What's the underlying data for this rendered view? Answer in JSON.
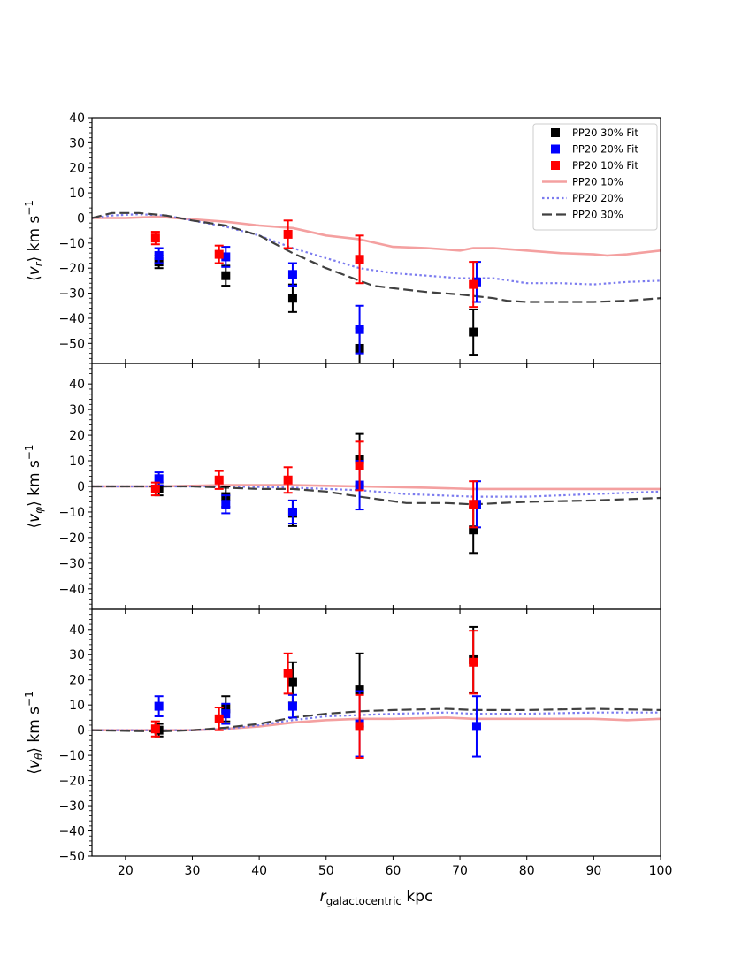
{
  "chart_data": {
    "type": "scatter",
    "xlabel_main": "r",
    "xlabel_sub": "galactocentric",
    "xlabel_unit": "kpc",
    "xlim": [
      15,
      100
    ],
    "xticks": [
      20,
      30,
      40,
      50,
      60,
      70,
      80,
      90,
      100
    ],
    "legend_position": "top-right",
    "legend": [
      {
        "label": "PP20 30% Fit",
        "kind": "marker",
        "color": "#000000"
      },
      {
        "label": "PP20 20% Fit",
        "kind": "marker",
        "color": "#0000ff"
      },
      {
        "label": "PP20 10% Fit",
        "kind": "marker",
        "color": "#ff0000"
      },
      {
        "label": "PP20 10%",
        "kind": "line",
        "color": "#f4a0a0",
        "style": "solid"
      },
      {
        "label": "PP20 20%",
        "kind": "line",
        "color": "#7b7bef",
        "style": "dotted"
      },
      {
        "label": "PP20 30%",
        "kind": "line",
        "color": "#404040",
        "style": "dashed"
      }
    ],
    "panels": [
      {
        "ylabel_sym": "v",
        "ylabel_sub": "r",
        "ylabel_unit": "km s",
        "ylabel_exp": "−1",
        "ylim": [
          -58,
          40
        ],
        "yticks": [
          -50,
          -40,
          -30,
          -20,
          -10,
          0,
          10,
          20,
          30,
          40
        ],
        "lines": [
          {
            "name": "PP20 10%",
            "x": [
              15,
              20,
              25,
              30,
              35,
              40,
              45,
              50,
              55,
              60,
              65,
              70,
              72,
              75,
              80,
              85,
              90,
              92,
              95,
              100
            ],
            "y": [
              0,
              0,
              0.5,
              -0.5,
              -1.5,
              -3,
              -4,
              -7,
              -8.5,
              -11.5,
              -12,
              -13,
              -12,
              -12,
              -13,
              -14,
              -14.5,
              -15,
              -14.5,
              -13
            ]
          },
          {
            "name": "PP20 20%",
            "x": [
              15,
              18,
              22,
              26,
              30,
              35,
              40,
              45,
              50,
              55,
              60,
              65,
              70,
              75,
              80,
              85,
              90,
              95,
              100
            ],
            "y": [
              0,
              1,
              1.5,
              1,
              -1,
              -3.5,
              -7,
              -12,
              -16,
              -20,
              -22,
              -23,
              -24,
              -24,
              -26,
              -26,
              -26.5,
              -25.5,
              -25
            ]
          },
          {
            "name": "PP20 30%",
            "x": [
              15,
              18,
              22,
              26,
              30,
              35,
              40,
              45,
              50,
              55,
              57,
              60,
              65,
              70,
              75,
              77,
              80,
              85,
              90,
              95,
              100
            ],
            "y": [
              0,
              2,
              2,
              1,
              -1,
              -3,
              -7,
              -14,
              -20,
              -25,
              -27,
              -28,
              -29.5,
              -30.5,
              -32,
              -33,
              -33.5,
              -33.5,
              -33.5,
              -33,
              -32
            ]
          }
        ],
        "points": [
          {
            "series": "PP20 30% Fit",
            "x": 25,
            "y": -17.5,
            "yerr": 2.5
          },
          {
            "series": "PP20 30% Fit",
            "x": 35,
            "y": -23,
            "yerr": 4
          },
          {
            "series": "PP20 30% Fit",
            "x": 45,
            "y": -32,
            "yerr": 5.5
          },
          {
            "series": "PP20 30% Fit",
            "x": 55,
            "y": -52,
            "yerr": 8
          },
          {
            "series": "PP20 30% Fit",
            "x": 72,
            "y": -45.5,
            "yerr": 9
          },
          {
            "series": "PP20 20% Fit",
            "x": 25,
            "y": -15,
            "yerr": 3
          },
          {
            "series": "PP20 20% Fit",
            "x": 35,
            "y": -15.5,
            "yerr": 4
          },
          {
            "series": "PP20 20% Fit",
            "x": 45,
            "y": -22.5,
            "yerr": 4.5
          },
          {
            "series": "PP20 20% Fit",
            "x": 55,
            "y": -44.5,
            "yerr": 9.5
          },
          {
            "series": "PP20 20% Fit",
            "x": 72.5,
            "y": -25.5,
            "yerr": 8
          },
          {
            "series": "PP20 10% Fit",
            "x": 24.5,
            "y": -8,
            "yerr": 2.5
          },
          {
            "series": "PP20 10% Fit",
            "x": 34,
            "y": -14.5,
            "yerr": 3.5
          },
          {
            "series": "PP20 10% Fit",
            "x": 44.3,
            "y": -6.5,
            "yerr": 5.5
          },
          {
            "series": "PP20 10% Fit",
            "x": 55,
            "y": -16.5,
            "yerr": 9.5
          },
          {
            "series": "PP20 10% Fit",
            "x": 72,
            "y": -26.5,
            "yerr": 9
          }
        ]
      },
      {
        "ylabel_sym": "v",
        "ylabel_sub": "φ",
        "ylabel_unit": "km s",
        "ylabel_exp": "−1",
        "ylim": [
          -48,
          48
        ],
        "yticks": [
          -40,
          -30,
          -20,
          -10,
          0,
          10,
          20,
          30,
          40
        ],
        "lines": [
          {
            "name": "PP20 10%",
            "x": [
              15,
              25,
              35,
              45,
              55,
              65,
              72,
              80,
              90,
              100
            ],
            "y": [
              0,
              0,
              0.5,
              0.5,
              0,
              -0.5,
              -1,
              -1,
              -1,
              -1
            ]
          },
          {
            "name": "PP20 20%",
            "x": [
              15,
              25,
              35,
              45,
              55,
              62,
              72,
              80,
              90,
              100
            ],
            "y": [
              0,
              0,
              0,
              -0.5,
              -1.5,
              -3,
              -4,
              -4,
              -3,
              -2
            ]
          },
          {
            "name": "PP20 30%",
            "x": [
              15,
              25,
              30,
              35,
              40,
              45,
              50,
              55,
              62,
              68,
              72,
              80,
              90,
              100
            ],
            "y": [
              0,
              0,
              0,
              -0.5,
              -1,
              -1,
              -2,
              -4,
              -6.5,
              -6.5,
              -7,
              -6,
              -5.5,
              -4.5
            ]
          }
        ],
        "points": [
          {
            "series": "PP20 30% Fit",
            "x": 25,
            "y": -1,
            "yerr": 2.5
          },
          {
            "series": "PP20 30% Fit",
            "x": 35,
            "y": -4,
            "yerr": 4
          },
          {
            "series": "PP20 30% Fit",
            "x": 45,
            "y": -10.5,
            "yerr": 5
          },
          {
            "series": "PP20 30% Fit",
            "x": 55,
            "y": 10.5,
            "yerr": 10
          },
          {
            "series": "PP20 30% Fit",
            "x": 72,
            "y": -17,
            "yerr": 9
          },
          {
            "series": "PP20 20% Fit",
            "x": 25,
            "y": 3,
            "yerr": 2.5
          },
          {
            "series": "PP20 20% Fit",
            "x": 35,
            "y": -7,
            "yerr": 3.5
          },
          {
            "series": "PP20 20% Fit",
            "x": 45,
            "y": -10,
            "yerr": 4.5
          },
          {
            "series": "PP20 20% Fit",
            "x": 55,
            "y": 0.5,
            "yerr": 9.5
          },
          {
            "series": "PP20 20% Fit",
            "x": 72.5,
            "y": -7,
            "yerr": 9
          },
          {
            "series": "PP20 10% Fit",
            "x": 24.5,
            "y": -1,
            "yerr": 2.5
          },
          {
            "series": "PP20 10% Fit",
            "x": 34,
            "y": 2.5,
            "yerr": 3.5
          },
          {
            "series": "PP20 10% Fit",
            "x": 44.3,
            "y": 2.5,
            "yerr": 5
          },
          {
            "series": "PP20 10% Fit",
            "x": 55,
            "y": 8,
            "yerr": 9.5
          },
          {
            "series": "PP20 10% Fit",
            "x": 72,
            "y": -7,
            "yerr": 9
          }
        ]
      },
      {
        "ylabel_sym": "v",
        "ylabel_sub": "θ",
        "ylabel_unit": "km s",
        "ylabel_exp": "−1",
        "ylim": [
          -50,
          48
        ],
        "yticks": [
          -50,
          -40,
          -30,
          -20,
          -10,
          0,
          10,
          20,
          30,
          40
        ],
        "lines": [
          {
            "name": "PP20 10%",
            "x": [
              15,
              25,
              30,
              35,
              40,
              45,
              50,
              55,
              60,
              68,
              72,
              80,
              90,
              95,
              100
            ],
            "y": [
              0,
              0,
              0,
              0.5,
              1.5,
              3,
              4,
              4.5,
              4.5,
              5,
              4.5,
              4.5,
              4.5,
              4,
              4.5
            ]
          },
          {
            "name": "PP20 20%",
            "x": [
              15,
              25,
              30,
              35,
              40,
              45,
              50,
              55,
              60,
              68,
              72,
              80,
              90,
              100
            ],
            "y": [
              0,
              0,
              0,
              0.5,
              2,
              4,
              5.5,
              6,
              6.5,
              7,
              6.5,
              6.5,
              7,
              7
            ]
          },
          {
            "name": "PP20 30%",
            "x": [
              15,
              25,
              30,
              35,
              40,
              45,
              50,
              55,
              60,
              68,
              72,
              80,
              90,
              100
            ],
            "y": [
              0,
              -0.5,
              0,
              1,
              2.5,
              5,
              6.5,
              7.5,
              8,
              8.5,
              8,
              8,
              8.5,
              8
            ]
          }
        ],
        "points": [
          {
            "series": "PP20 30% Fit",
            "x": 25,
            "y": 0,
            "yerr": 2.5
          },
          {
            "series": "PP20 30% Fit",
            "x": 35,
            "y": 8.5,
            "yerr": 5
          },
          {
            "series": "PP20 30% Fit",
            "x": 45,
            "y": 19,
            "yerr": 8
          },
          {
            "series": "PP20 30% Fit",
            "x": 55,
            "y": 16,
            "yerr": 14.5
          },
          {
            "series": "PP20 30% Fit",
            "x": 72,
            "y": 28,
            "yerr": 13
          },
          {
            "series": "PP20 20% Fit",
            "x": 25,
            "y": 9.5,
            "yerr": 4
          },
          {
            "series": "PP20 20% Fit",
            "x": 35,
            "y": 6.5,
            "yerr": 4
          },
          {
            "series": "PP20 20% Fit",
            "x": 45,
            "y": 9.5,
            "yerr": 4.5
          },
          {
            "series": "PP20 20% Fit",
            "x": 55,
            "y": 2.5,
            "yerr": 13
          },
          {
            "series": "PP20 20% Fit",
            "x": 72.5,
            "y": 1.5,
            "yerr": 12
          },
          {
            "series": "PP20 10% Fit",
            "x": 24.5,
            "y": 0.5,
            "yerr": 3
          },
          {
            "series": "PP20 10% Fit",
            "x": 34,
            "y": 4.5,
            "yerr": 4.5
          },
          {
            "series": "PP20 10% Fit",
            "x": 44.3,
            "y": 22.5,
            "yerr": 8
          },
          {
            "series": "PP20 10% Fit",
            "x": 55,
            "y": 1.5,
            "yerr": 12.5
          },
          {
            "series": "PP20 10% Fit",
            "x": 72,
            "y": 27,
            "yerr": 12.5
          }
        ]
      }
    ]
  }
}
